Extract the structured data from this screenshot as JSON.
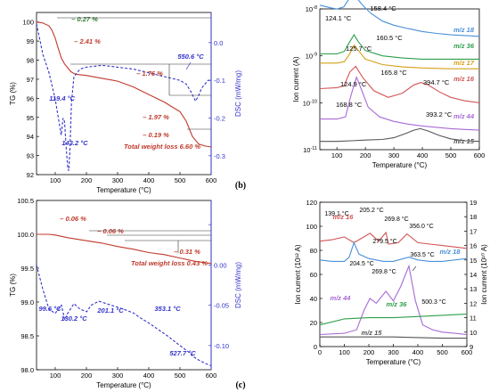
{
  "panel_labels": {
    "b": "(b)",
    "c": "(c)"
  },
  "chart_data": [
    {
      "id": "top_left",
      "type": "line",
      "xlabel": "Temperature (°C)",
      "ylabel_left": "TG (%)",
      "ylabel_right": "DSC (mW/mg)",
      "xlim": [
        40,
        600
      ],
      "ylim_left": [
        92,
        100.5
      ],
      "ylim_right": [
        -0.35,
        0.08
      ],
      "x_ticks": [
        100,
        200,
        300,
        400,
        500,
        600
      ],
      "y_ticks_left": [
        92,
        93,
        94,
        95,
        96,
        97,
        98,
        99,
        100
      ],
      "y_ticks_right": [
        0.0,
        -0.1,
        -0.2,
        -0.3
      ],
      "y_tick_labels_right": [
        "0.0",
        "-0.1",
        "-0.2",
        "-0.3"
      ],
      "series": [
        {
          "axis": "left",
          "color": "#c0392b",
          "style": "solid",
          "x": [
            40,
            60,
            80,
            90,
            100,
            110,
            120,
            130,
            140,
            150,
            160,
            170,
            200,
            250,
            300,
            350,
            400,
            450,
            480,
            500,
            520,
            540,
            560,
            580,
            600
          ],
          "y": [
            100,
            99.95,
            99.8,
            99.55,
            99.15,
            98.6,
            98.1,
            97.8,
            97.6,
            97.4,
            97.3,
            97.25,
            97.2,
            97.05,
            96.9,
            96.6,
            96.2,
            95.8,
            95.5,
            95.3,
            94.8,
            94.0,
            93.6,
            93.5,
            93.45
          ]
        },
        {
          "axis": "right",
          "color": "#3333cc",
          "style": "dashed",
          "x": [
            40,
            60,
            80,
            100,
            110,
            119,
            125,
            130,
            135,
            140,
            143,
            147,
            152,
            160,
            170,
            180,
            200,
            250,
            300,
            350,
            400,
            450,
            500,
            520,
            535,
            550,
            560,
            570,
            580,
            590,
            600
          ],
          "y": [
            0.05,
            -0.03,
            -0.08,
            -0.15,
            -0.2,
            -0.245,
            -0.2,
            -0.21,
            -0.28,
            -0.33,
            -0.34,
            -0.29,
            -0.16,
            -0.09,
            -0.08,
            -0.07,
            -0.065,
            -0.06,
            -0.065,
            -0.07,
            -0.08,
            -0.09,
            -0.1,
            -0.11,
            -0.13,
            -0.155,
            -0.14,
            -0.12,
            -0.11,
            -0.1,
            -0.1
          ]
        }
      ],
      "annotations": [
        {
          "text": "– 0.27 %",
          "color": "#2e7d32"
        },
        {
          "text": "– 2.41 %",
          "color": "#c0392b"
        },
        {
          "text": "– 1.76 %",
          "color": "#c0392b"
        },
        {
          "text": "– 1.97 %",
          "color": "#c0392b"
        },
        {
          "text": "– 0.19 %",
          "color": "#c0392b"
        },
        {
          "text": "Total weight loss 6.60 %",
          "color": "#c0392b"
        },
        {
          "text": "119.4 °C",
          "color": "#3333cc"
        },
        {
          "text": "143.2 °C",
          "color": "#3333cc"
        },
        {
          "text": "550.6 °C",
          "color": "#3333cc"
        }
      ]
    },
    {
      "id": "top_right",
      "type": "line",
      "yscale": "log",
      "xlabel": "Temperature (°C)",
      "ylabel_left": "Ion current (A)",
      "xlim": [
        40,
        600
      ],
      "ylim_left_exp": [
        -11,
        -8
      ],
      "x_ticks": [
        100,
        200,
        300,
        400,
        500,
        600
      ],
      "y_tick_exps": [
        -11,
        -10,
        -9,
        -8
      ],
      "series": [
        {
          "name": "m/z 18",
          "color": "#4a90d9",
          "x": [
            40,
            80,
            100,
            124,
            135,
            150,
            158,
            170,
            190,
            220,
            260,
            300,
            350,
            400,
            450,
            500,
            550,
            600
          ],
          "y": [
            1.2e-08,
            1.05e-08,
            1e-08,
            1.1e-08,
            1.4e-08,
            1.9e-08,
            2.1e-08,
            1.7e-08,
            1.2e-08,
            8e-09,
            5.5e-09,
            4.5e-09,
            3.8e-09,
            3.3e-09,
            3e-09,
            2.8e-09,
            2.7e-09,
            2.6e-09
          ]
        },
        {
          "name": "m/z 36",
          "color": "#2e9e4a",
          "x": [
            40,
            100,
            126,
            145,
            160,
            175,
            200,
            260,
            330,
            400,
            500,
            600
          ],
          "y": [
            1.1e-09,
            1.1e-09,
            1.25e-09,
            2e-09,
            2.8e-09,
            2e-09,
            1.3e-09,
            1e-09,
            9e-10,
            8.5e-10,
            8.5e-10,
            8.5e-10
          ]
        },
        {
          "name": "m/z 17",
          "color": "#d4a017",
          "x": [
            40,
            100,
            126,
            145,
            160,
            175,
            200,
            260,
            330,
            400,
            500,
            600
          ],
          "y": [
            7e-10,
            7e-10,
            7.5e-10,
            1.1e-09,
            1.7e-09,
            1.3e-09,
            8.5e-10,
            6.5e-10,
            5.8e-10,
            5.5e-10,
            5.3e-10,
            5.3e-10
          ]
        },
        {
          "name": "m/z 16",
          "color": "#d35454",
          "x": [
            40,
            100,
            125,
            145,
            166,
            190,
            230,
            280,
            330,
            370,
            395,
            420,
            460,
            500,
            550,
            600
          ],
          "y": [
            2e-10,
            2.1e-10,
            2.3e-10,
            4.5e-10,
            6e-10,
            3.5e-10,
            1.8e-10,
            1.3e-10,
            1.6e-10,
            2.4e-10,
            2.7e-10,
            2.4e-10,
            1.7e-10,
            1.3e-10,
            1.1e-10,
            1e-10
          ]
        },
        {
          "name": "m/z 44",
          "color": "#a86ad6",
          "x": [
            40,
            100,
            130,
            150,
            169,
            185,
            210,
            250,
            300,
            350,
            400,
            450,
            500,
            550,
            600
          ],
          "y": [
            4.5e-11,
            4.5e-11,
            5e-11,
            1.5e-10,
            3.5e-10,
            2e-10,
            8e-11,
            5e-11,
            4e-11,
            3.5e-11,
            3.2e-11,
            3e-11,
            2.8e-11,
            2.7e-11,
            2.6e-11
          ]
        },
        {
          "name": "m/z 15",
          "color": "#555555",
          "x": [
            40,
            100,
            150,
            200,
            260,
            300,
            340,
            370,
            393,
            420,
            460,
            500,
            550,
            600
          ],
          "y": [
            1.5e-11,
            1.5e-11,
            1.55e-11,
            1.6e-11,
            1.65e-11,
            1.8e-11,
            2.2e-11,
            2.6e-11,
            2.8e-11,
            2.5e-11,
            2e-11,
            1.7e-11,
            1.55e-11,
            1.5e-11
          ]
        }
      ],
      "annotations": [
        {
          "text": "124.1 °C",
          "color": "#000000"
        },
        {
          "text": "158.4 °C",
          "color": "#000000"
        },
        {
          "text": "125.7 °C",
          "color": "#000000"
        },
        {
          "text": "160.5 °C",
          "color": "#000000"
        },
        {
          "text": "124.9 °C",
          "color": "#000000"
        },
        {
          "text": "165.8 °C",
          "color": "#000000"
        },
        {
          "text": "394.7 °C",
          "color": "#000000"
        },
        {
          "text": "168.8 °C",
          "color": "#000000"
        },
        {
          "text": "393.2 °C",
          "color": "#000000"
        }
      ]
    },
    {
      "id": "bottom_left",
      "type": "line",
      "xlabel": "Temperature (°C)",
      "ylabel_left": "TG (%)",
      "ylabel_right": "DSC (mW/mg)",
      "xlim": [
        40,
        600
      ],
      "ylim_left": [
        98.0,
        100.5
      ],
      "ylim_right": [
        -0.13,
        0.08
      ],
      "x_ticks": [
        100,
        200,
        300,
        400,
        500,
        600
      ],
      "y_ticks_left": [
        98.0,
        98.5,
        99.0,
        99.5,
        100.0,
        100.5
      ],
      "y_tick_labels_left": [
        "98.0",
        "98.5",
        "99.0",
        "99.5",
        "100.0",
        "100.5"
      ],
      "y_ticks_right": [
        0.05,
        0.0,
        -0.05,
        -0.1
      ],
      "y_tick_labels_right": [
        "",
        "0.00",
        "-0.05",
        "-0.10"
      ],
      "series": [
        {
          "axis": "left",
          "color": "#c0392b",
          "style": "solid",
          "x": [
            40,
            80,
            100,
            120,
            140,
            180,
            250,
            300,
            350,
            400,
            450,
            500,
            550,
            600
          ],
          "y": [
            100.0,
            100.0,
            99.99,
            99.97,
            99.95,
            99.92,
            99.87,
            99.82,
            99.78,
            99.73,
            99.7,
            99.65,
            99.6,
            99.57
          ]
        },
        {
          "axis": "right",
          "color": "#3333cc",
          "style": "dashed",
          "x": [
            40,
            60,
            80,
            99.6,
            110,
            120,
            130.2,
            140,
            160,
            180,
            201.1,
            215,
            240,
            280,
            320,
            353.1,
            370,
            400,
            430,
            460,
            500,
            527.7,
            540,
            560,
            580,
            600
          ],
          "y": [
            0.0,
            -0.03,
            -0.055,
            -0.06,
            -0.055,
            -0.05,
            -0.068,
            -0.06,
            -0.048,
            -0.055,
            -0.058,
            -0.05,
            -0.045,
            -0.05,
            -0.055,
            -0.06,
            -0.065,
            -0.072,
            -0.08,
            -0.088,
            -0.1,
            -0.108,
            -0.113,
            -0.118,
            -0.122,
            -0.125
          ]
        }
      ],
      "annotations": [
        {
          "text": "– 0.06 %",
          "color": "#c0392b"
        },
        {
          "text": "– 0.06 %",
          "color": "#c0392b"
        },
        {
          "text": "– 0.31 %",
          "color": "#c0392b"
        },
        {
          "text": "Total weight loss 0.43 %",
          "color": "#c0392b"
        },
        {
          "text": "99.6 °C",
          "color": "#3333cc"
        },
        {
          "text": "130.2 °C",
          "color": "#3333cc"
        },
        {
          "text": "201.1 °C",
          "color": "#3333cc"
        },
        {
          "text": "353.1 °C",
          "color": "#3333cc"
        },
        {
          "text": "527.7 °C",
          "color": "#3333cc"
        }
      ]
    },
    {
      "id": "bottom_right",
      "type": "line",
      "xlabel": "Temperature (°C)",
      "ylabel_left": "Ion current (10¹² A)",
      "ylabel_right": "Ion current (10¹⁰ A)",
      "xlim": [
        0,
        600
      ],
      "ylim_left": [
        0,
        120
      ],
      "ylim_right": [
        9,
        19
      ],
      "x_ticks": [
        0,
        100,
        200,
        300,
        400,
        500,
        600
      ],
      "y_ticks_left": [
        0,
        20,
        40,
        60,
        80,
        100,
        120
      ],
      "y_ticks_right": [
        9,
        10,
        11,
        12,
        13,
        14,
        15,
        16,
        17,
        18,
        19
      ],
      "series": [
        {
          "name": "m/z 16",
          "axis": "right",
          "color": "#d35454",
          "x": [
            0,
            50,
            100,
            139.1,
            170,
            205.2,
            240,
            269.8,
            279.5,
            320,
            356,
            400,
            450,
            500,
            550,
            600
          ],
          "y": [
            16.3,
            16.4,
            16.6,
            16.2,
            16.5,
            16.85,
            16.3,
            16.9,
            16.1,
            16.2,
            16.8,
            16.2,
            16.1,
            16.0,
            15.9,
            15.8
          ]
        },
        {
          "name": "m/z 18",
          "axis": "right",
          "color": "#4a90d9",
          "x": [
            0,
            50,
            100,
            120,
            139.1,
            160,
            200,
            260,
            300,
            363.5,
            400,
            450,
            500,
            550,
            600
          ],
          "y": [
            15.0,
            14.9,
            14.9,
            15.2,
            16.2,
            15.4,
            15.1,
            14.9,
            14.9,
            15.2,
            15.0,
            14.9,
            14.9,
            15.0,
            15.1
          ]
        },
        {
          "name": "m/z 44",
          "axis": "left",
          "color": "#a86ad6",
          "x": [
            0,
            100,
            150,
            180,
            204.5,
            230,
            269.8,
            300,
            330,
            363.5,
            390,
            420,
            460,
            500,
            550,
            600
          ],
          "y": [
            10,
            11,
            14,
            30,
            40,
            36,
            46,
            38,
            50,
            67,
            38,
            18,
            14,
            12,
            11,
            10
          ]
        },
        {
          "name": "m/z 36",
          "axis": "left",
          "color": "#2e9e4a",
          "x": [
            0,
            100,
            200,
            300,
            400,
            500,
            600
          ],
          "y": [
            18,
            23,
            24,
            24,
            25,
            26,
            27
          ]
        },
        {
          "name": "m/z 15",
          "axis": "left",
          "color": "#555555",
          "x": [
            0,
            100,
            200,
            300,
            400,
            500,
            600
          ],
          "y": [
            8,
            8,
            8,
            8,
            7.5,
            7,
            7
          ]
        }
      ],
      "annotations": [
        {
          "text": "139.1 °C",
          "color": "#000000"
        },
        {
          "text": "205.2 °C",
          "color": "#000000"
        },
        {
          "text": "269.8 °C",
          "color": "#000000"
        },
        {
          "text": "356.0 °C",
          "color": "#000000"
        },
        {
          "text": "279.5 °C",
          "color": "#000000"
        },
        {
          "text": "363.5 °C",
          "color": "#000000"
        },
        {
          "text": "204.5 °C",
          "color": "#000000"
        },
        {
          "text": "269.8 °C",
          "color": "#000000"
        },
        {
          "text": "500.3 °C",
          "color": "#000000"
        }
      ]
    }
  ]
}
